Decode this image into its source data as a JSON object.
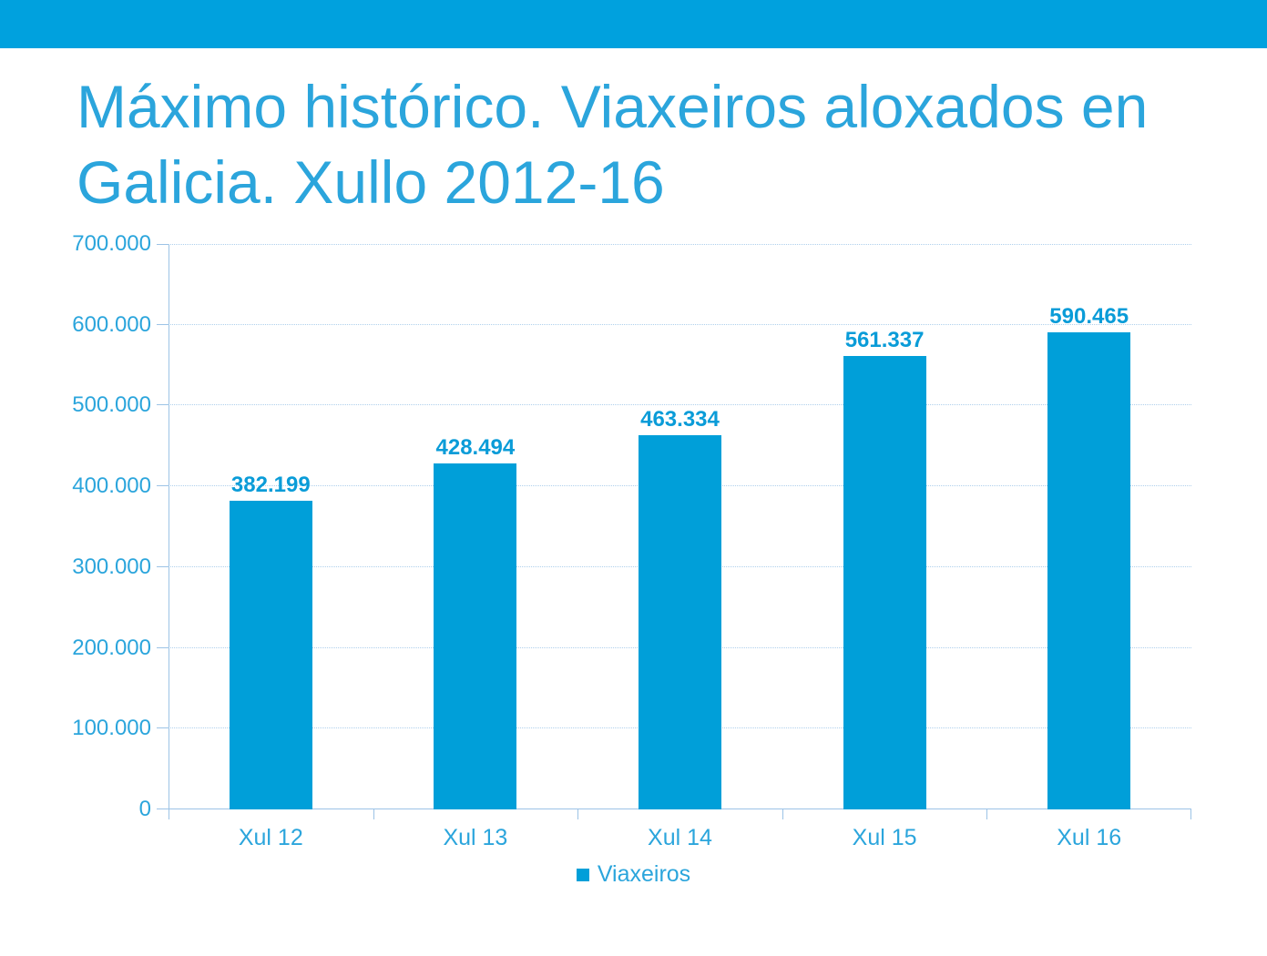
{
  "slide": {
    "banner_color": "#00A1DE",
    "title": {
      "lines": [
        "Máximo histórico. Viaxeiros aloxados en",
        "Galicia. Xullo 2012-16"
      ],
      "color": "#2BA5DC"
    }
  },
  "chart_data": {
    "type": "bar",
    "title": "Máximo histórico. Viaxeiros aloxados en Galicia. Xullo 2012-16",
    "categories": [
      "Xul 12",
      "Xul 13",
      "Xul 14",
      "Xul 15",
      "Xul 16"
    ],
    "series": [
      {
        "name": "Viaxeiros",
        "values": [
          382199,
          428494,
          463334,
          561337,
          590465
        ]
      }
    ],
    "data_labels": [
      "382.199",
      "428.494",
      "463.334",
      "561.337",
      "590.465"
    ],
    "xlabel": "",
    "ylabel": "",
    "ylim": [
      0,
      700000
    ],
    "y_tick_step": 100000,
    "y_tick_labels": [
      "0",
      "100.000",
      "200.000",
      "300.000",
      "400.000",
      "500.000",
      "600.000",
      "700.000"
    ],
    "grid": true,
    "legend": {
      "position": "bottom",
      "entries": [
        "Viaxeiros"
      ]
    },
    "colors": {
      "bar": "#009FD9",
      "data_label": "#0A9CD8",
      "axis_text": "#2BA5DC",
      "axis_line": "#9CC3E6",
      "gridline": "#AFD0EC"
    }
  }
}
